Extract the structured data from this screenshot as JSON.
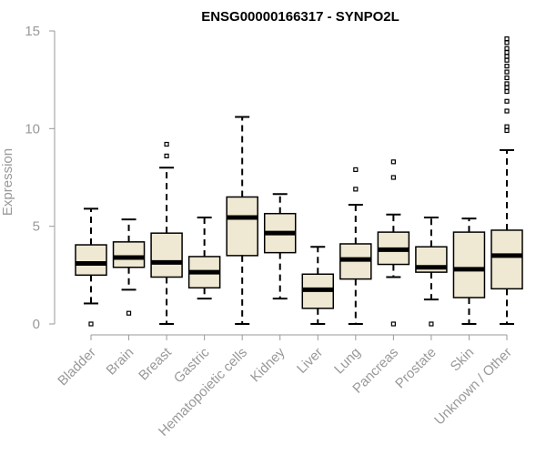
{
  "chart_data": {
    "type": "boxplot",
    "title": "ENSG00000166317 - SYNPO2L",
    "xlabel": "",
    "ylabel": "Expression",
    "ylim": [
      0,
      15
    ],
    "yticks": [
      0,
      5,
      10,
      15
    ],
    "grid": false,
    "colors": {
      "box_fill": "#efe8d2",
      "box_stroke": "#000000",
      "axis": "#999999"
    },
    "categories": [
      "Bladder",
      "Brain",
      "Breast",
      "Gastric",
      "Hematopoietic cells",
      "Kidney",
      "Liver",
      "Lung",
      "Pancreas",
      "Prostate",
      "Skin",
      "Unknown / Other"
    ],
    "boxes": [
      {
        "category": "Bladder",
        "whisker_low": 1.05,
        "q1": 2.5,
        "median": 3.1,
        "q3": 4.05,
        "whisker_high": 5.9,
        "outliers": [
          0.0
        ]
      },
      {
        "category": "Brain",
        "whisker_low": 1.75,
        "q1": 2.9,
        "median": 3.4,
        "q3": 4.2,
        "whisker_high": 5.35,
        "outliers": [
          0.55
        ]
      },
      {
        "category": "Breast",
        "whisker_low": 0.0,
        "q1": 2.4,
        "median": 3.15,
        "q3": 4.65,
        "whisker_high": 8.0,
        "outliers": [
          8.6,
          9.2
        ]
      },
      {
        "category": "Gastric",
        "whisker_low": 1.3,
        "q1": 1.85,
        "median": 2.65,
        "q3": 3.45,
        "whisker_high": 5.45,
        "outliers": []
      },
      {
        "category": "Hematopoietic cells",
        "whisker_low": 0.0,
        "q1": 3.5,
        "median": 5.45,
        "q3": 6.5,
        "whisker_high": 10.6,
        "outliers": []
      },
      {
        "category": "Kidney",
        "whisker_low": 1.3,
        "q1": 3.65,
        "median": 4.65,
        "q3": 5.65,
        "whisker_high": 6.65,
        "outliers": []
      },
      {
        "category": "Liver",
        "whisker_low": 0.0,
        "q1": 0.8,
        "median": 1.75,
        "q3": 2.55,
        "whisker_high": 3.95,
        "outliers": []
      },
      {
        "category": "Lung",
        "whisker_low": 0.0,
        "q1": 2.3,
        "median": 3.3,
        "q3": 4.1,
        "whisker_high": 6.1,
        "outliers": [
          6.9,
          7.9
        ]
      },
      {
        "category": "Pancreas",
        "whisker_low": 2.4,
        "q1": 3.05,
        "median": 3.8,
        "q3": 4.7,
        "whisker_high": 5.6,
        "outliers": [
          0.0,
          7.5,
          8.3
        ]
      },
      {
        "category": "Prostate",
        "whisker_low": 1.25,
        "q1": 2.65,
        "median": 2.9,
        "q3": 3.95,
        "whisker_high": 5.45,
        "outliers": [
          0.0
        ]
      },
      {
        "category": "Skin",
        "whisker_low": 0.0,
        "q1": 1.35,
        "median": 2.8,
        "q3": 4.7,
        "whisker_high": 5.4,
        "outliers": []
      },
      {
        "category": "Unknown / Other",
        "whisker_low": 0.0,
        "q1": 1.8,
        "median": 3.5,
        "q3": 4.8,
        "whisker_high": 8.9,
        "outliers": [
          9.9,
          10.1,
          10.9,
          11.4,
          11.9,
          12.1,
          12.3,
          12.6,
          12.9,
          13.2,
          13.5,
          13.7,
          13.9,
          14.1,
          14.4,
          14.6
        ]
      }
    ]
  }
}
